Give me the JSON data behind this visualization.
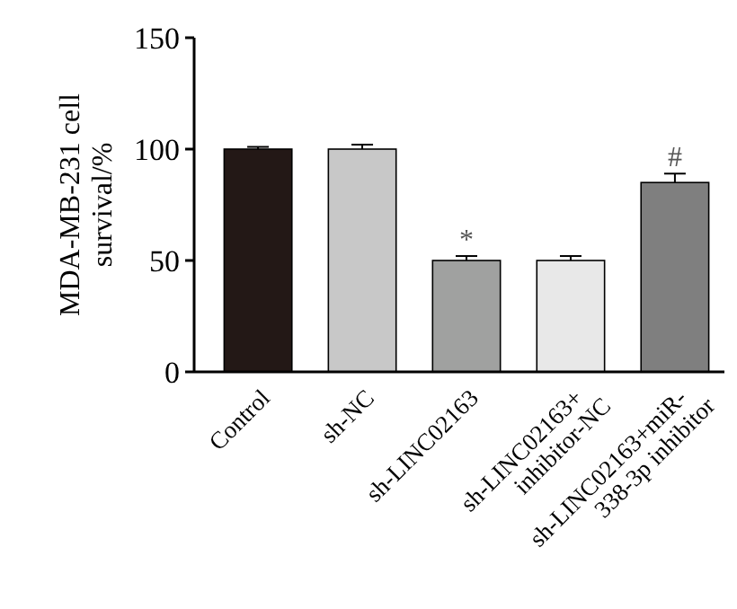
{
  "chart_data": {
    "type": "bar",
    "ylabel": "MDA-MB-231 cell survival/%",
    "categories": [
      "Control",
      "sh-NC",
      "sh-LINC02163",
      "sh-LINC02163+inhibitor-NC",
      "sh-LINC02163+miR-338-3p inhibitor"
    ],
    "values": [
      100,
      100,
      50,
      50,
      85
    ],
    "errors": [
      1,
      2,
      2,
      2,
      4
    ],
    "colors": [
      "#231816",
      "#c8c8c8",
      "#a0a1a0",
      "#e8e8e8",
      "#7f7f7f"
    ],
    "ylim": [
      0,
      150
    ],
    "yticks": [
      0,
      50,
      100,
      150
    ],
    "grid": false,
    "annotations": [
      {
        "text": "*",
        "x": "sh-LINC02163",
        "y": 50
      },
      {
        "text": "#",
        "x": "sh-LINC02163+miR-338-3p inhibitor",
        "y": 85
      }
    ]
  }
}
